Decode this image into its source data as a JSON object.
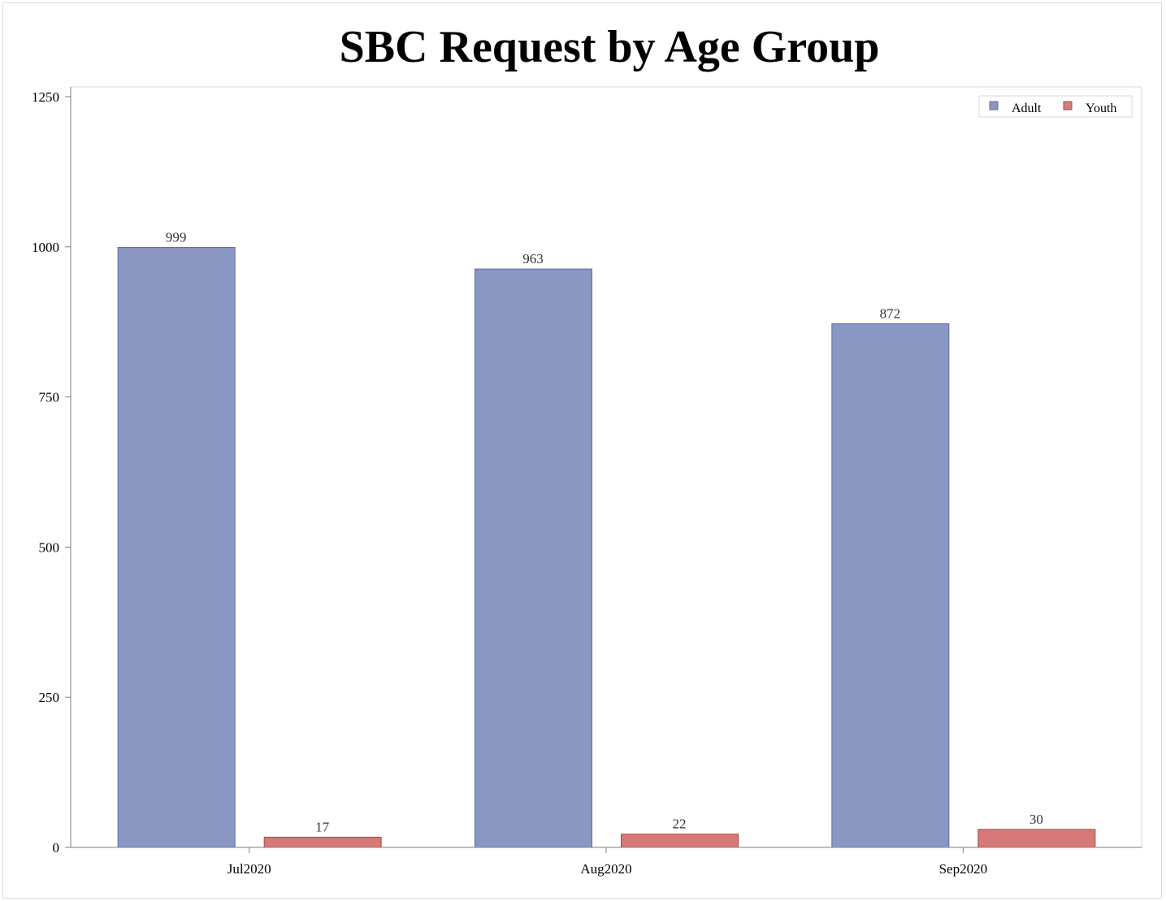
{
  "chart_data": {
    "type": "bar",
    "title": "SBC Request by Age Group",
    "xlabel": "",
    "ylabel": "",
    "categories": [
      "Jul2020",
      "Aug2020",
      "Sep2020"
    ],
    "series": [
      {
        "name": "Adult",
        "values": [
          999,
          963,
          872
        ],
        "color": "#8b97c3",
        "stroke": "#5c6aa3"
      },
      {
        "name": "Youth",
        "values": [
          17,
          22,
          30
        ],
        "color": "#d57a76",
        "stroke": "#a9484a"
      }
    ],
    "ylim": [
      0,
      1250
    ],
    "yticks": [
      0,
      250,
      500,
      750,
      1000,
      1250
    ],
    "grid": false,
    "legend_position": "top-right",
    "data_labels": true
  }
}
